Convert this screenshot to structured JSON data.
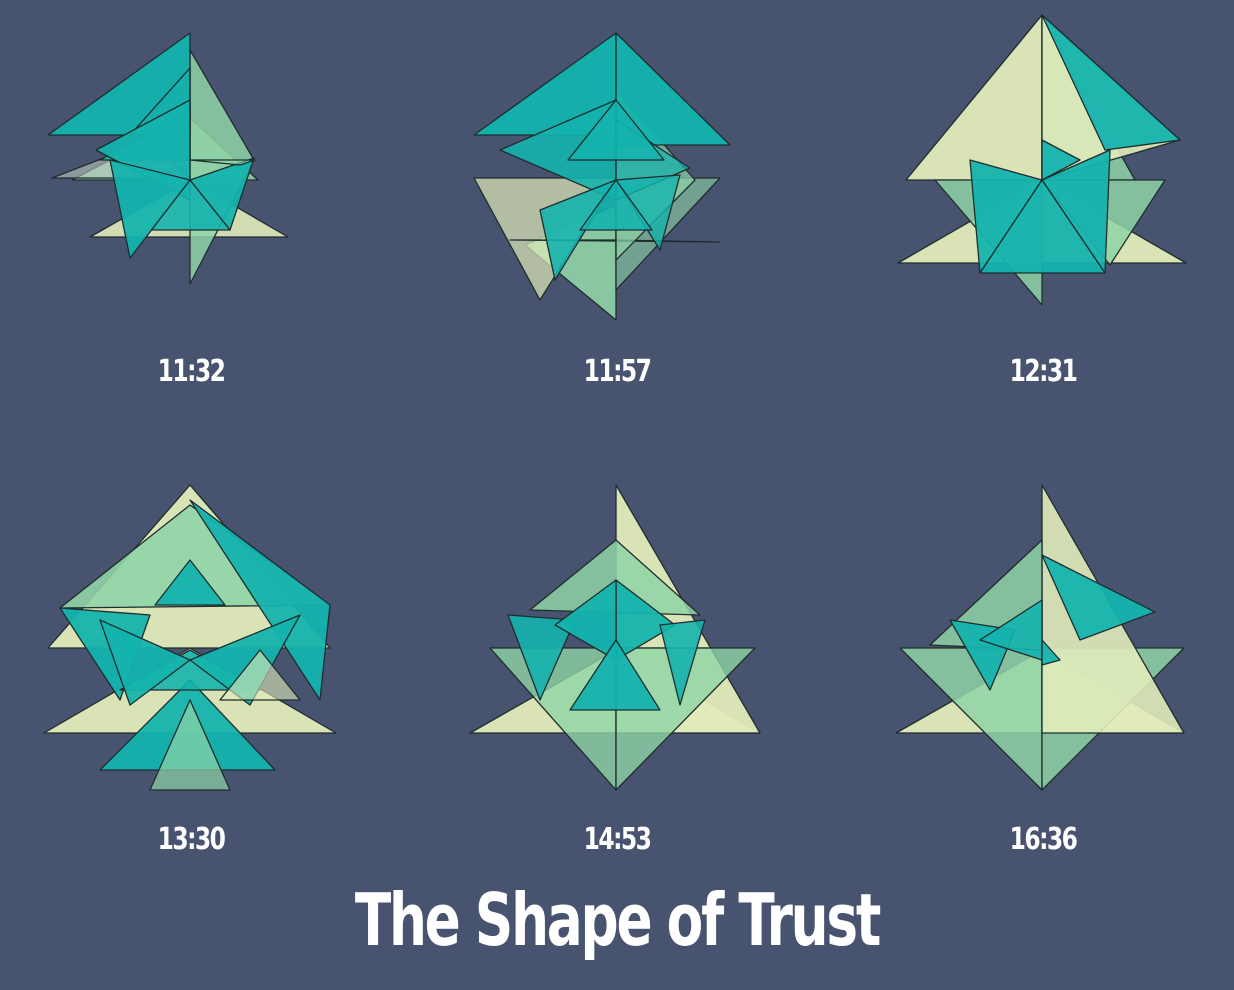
{
  "title": "The Shape of Trust",
  "colors": {
    "background": "#485370",
    "teal": "#14b3ad",
    "mint": "#8fd4a6",
    "cream": "#e1ebb9",
    "outline": "#1f2d2e"
  },
  "panels": [
    {
      "label": "11:32"
    },
    {
      "label": "11:57"
    },
    {
      "label": "12:31"
    },
    {
      "label": "13:30"
    },
    {
      "label": "14:53"
    },
    {
      "label": "16:36"
    }
  ]
}
